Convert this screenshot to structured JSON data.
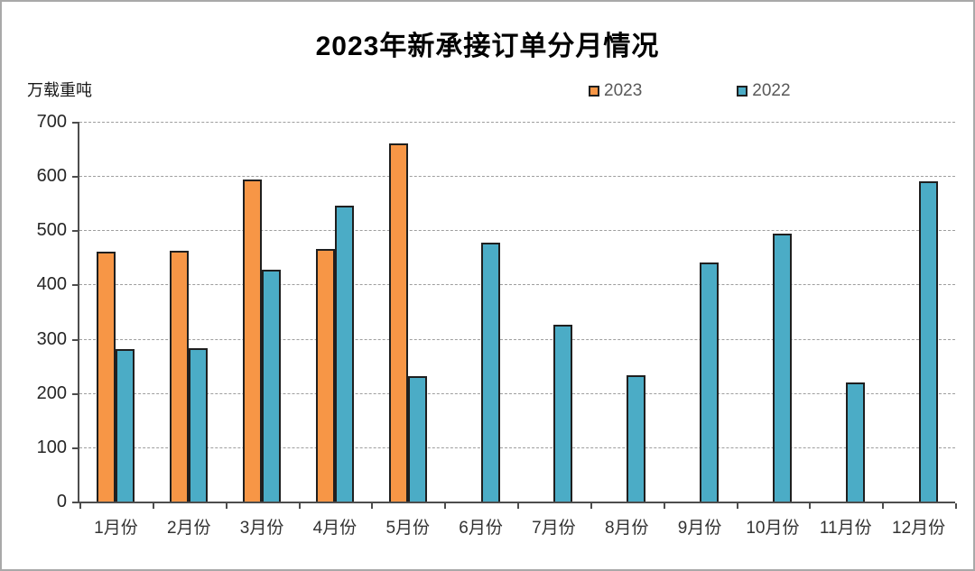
{
  "frame": {
    "background": "#ffffff",
    "border_color": "#a9a9a9"
  },
  "chart_data": {
    "type": "bar",
    "title": "2023年新承接订单分月情况",
    "ylabel": "万载重吨",
    "xlabel": "",
    "ylim": [
      0,
      700
    ],
    "ytick_step": 100,
    "ytick_labels": [
      "0",
      "100",
      "200",
      "300",
      "400",
      "500",
      "600",
      "700"
    ],
    "grid": "horizontal-dotted",
    "legend_position": "top-center",
    "categories": [
      "1月份",
      "2月份",
      "3月份",
      "4月份",
      "5月份",
      "6月份",
      "7月份",
      "8月份",
      "9月份",
      "10月份",
      "11月份",
      "12月份"
    ],
    "series": [
      {
        "name": "2023",
        "color": "#F79646",
        "values": [
          460,
          462,
          593,
          466,
          660,
          null,
          null,
          null,
          null,
          null,
          null,
          null
        ]
      },
      {
        "name": "2022",
        "color": "#4BACC6",
        "values": [
          281,
          283,
          428,
          546,
          231,
          477,
          326,
          232,
          440,
          494,
          220,
          591
        ]
      }
    ]
  }
}
